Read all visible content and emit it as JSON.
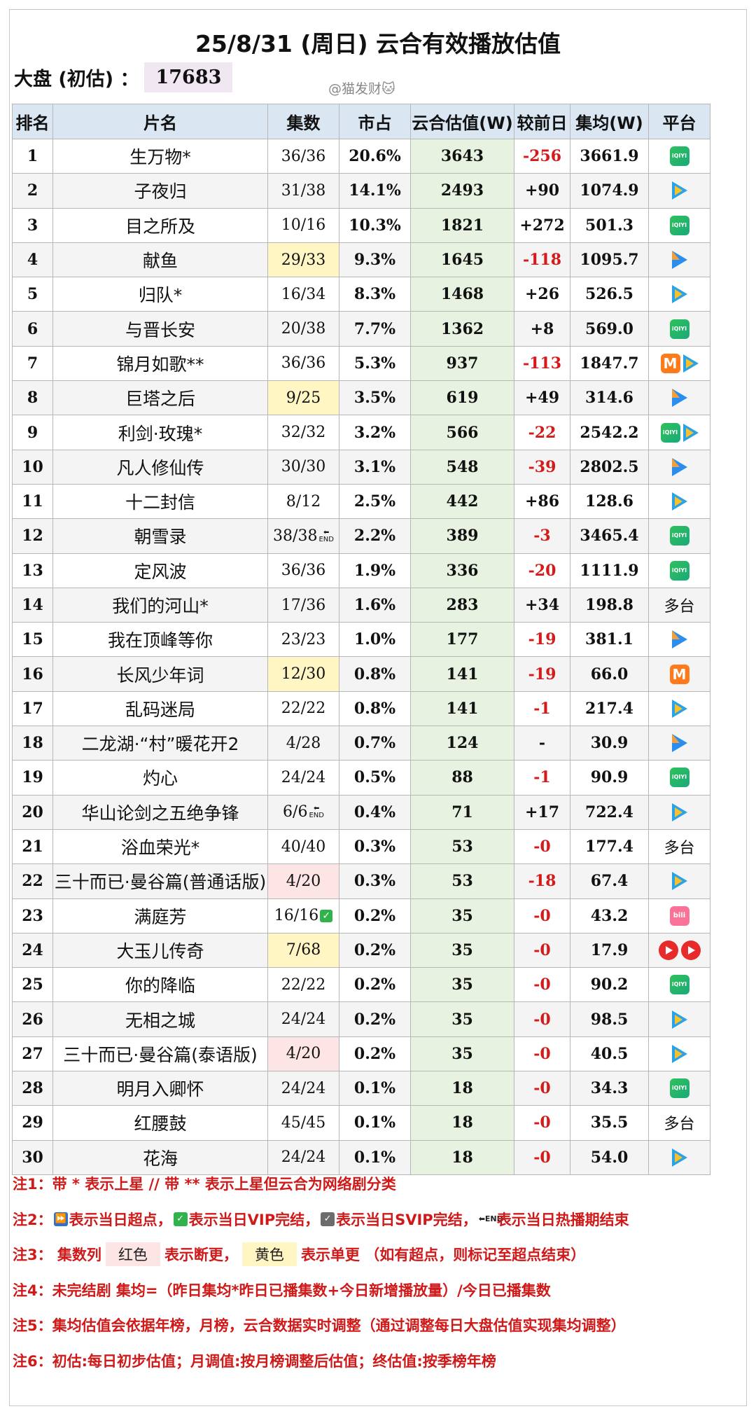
{
  "title": "25/8/31 (周日) 云合有效播放估值",
  "dapan": {
    "label": "大盘 (初估) ：",
    "value": "17683"
  },
  "watermark": "@猫发财🐱",
  "headers": [
    "排名",
    "片名",
    "集数",
    "市占",
    "云合估值(W)",
    "较前日",
    "集均(W)",
    "平台"
  ],
  "rows": [
    {
      "rank": "1",
      "name": "生万物*",
      "ep": "36/36",
      "share": "20.6%",
      "est": "3643",
      "chg": "-256",
      "avg": "3661.9",
      "plat": [
        "iqiyi"
      ]
    },
    {
      "rank": "2",
      "name": "子夜归",
      "ep": "31/38",
      "share": "14.1%",
      "est": "2493",
      "chg": "+90",
      "avg": "1074.9",
      "plat": [
        "tencent"
      ]
    },
    {
      "rank": "3",
      "name": "目之所及",
      "ep": "10/16",
      "share": "10.3%",
      "est": "1821",
      "chg": "+272",
      "avg": "501.3",
      "plat": [
        "iqiyi"
      ]
    },
    {
      "rank": "4",
      "name": "献鱼",
      "ep": "29/33",
      "share": "9.3%",
      "est": "1645",
      "chg": "-118",
      "avg": "1095.7",
      "plat": [
        "youku"
      ],
      "ephl": "yellow"
    },
    {
      "rank": "5",
      "name": "归队*",
      "ep": "16/34",
      "share": "8.3%",
      "est": "1468",
      "chg": "+26",
      "avg": "526.5",
      "plat": [
        "tencent"
      ]
    },
    {
      "rank": "6",
      "name": "与晋长安",
      "ep": "20/38",
      "share": "7.7%",
      "est": "1362",
      "chg": "+8",
      "avg": "569.0",
      "plat": [
        "iqiyi"
      ]
    },
    {
      "rank": "7",
      "name": "锦月如歌**",
      "ep": "36/36",
      "share": "5.3%",
      "est": "937",
      "chg": "-113",
      "avg": "1847.7",
      "plat": [
        "mango",
        "tencent"
      ]
    },
    {
      "rank": "8",
      "name": "巨塔之后",
      "ep": "9/25",
      "share": "3.5%",
      "est": "619",
      "chg": "+49",
      "avg": "314.6",
      "plat": [
        "youku"
      ],
      "ephl": "yellow"
    },
    {
      "rank": "9",
      "name": "利剑·玫瑰*",
      "ep": "32/32",
      "share": "3.2%",
      "est": "566",
      "chg": "-22",
      "avg": "2542.2",
      "plat": [
        "iqiyi",
        "tencent"
      ]
    },
    {
      "rank": "10",
      "name": "凡人修仙传",
      "ep": "30/30",
      "share": "3.1%",
      "est": "548",
      "chg": "-39",
      "avg": "2802.5",
      "plat": [
        "youku"
      ]
    },
    {
      "rank": "11",
      "name": "十二封信",
      "ep": "8/12",
      "share": "2.5%",
      "est": "442",
      "chg": "+86",
      "avg": "128.6",
      "plat": [
        "tencent"
      ]
    },
    {
      "rank": "12",
      "name": "朝雪录",
      "ep": "38/38",
      "share": "2.2%",
      "est": "389",
      "chg": "-3",
      "avg": "3465.4",
      "plat": [
        "iqiyi"
      ],
      "flag": "END"
    },
    {
      "rank": "13",
      "name": "定风波",
      "ep": "36/36",
      "share": "1.9%",
      "est": "336",
      "chg": "-20",
      "avg": "1111.9",
      "plat": [
        "iqiyi"
      ]
    },
    {
      "rank": "14",
      "name": "我们的河山*",
      "ep": "17/36",
      "share": "1.6%",
      "est": "283",
      "chg": "+34",
      "avg": "198.8",
      "platText": "多台"
    },
    {
      "rank": "15",
      "name": "我在顶峰等你",
      "ep": "23/23",
      "share": "1.0%",
      "est": "177",
      "chg": "-19",
      "avg": "381.1",
      "plat": [
        "youku"
      ]
    },
    {
      "rank": "16",
      "name": "长风少年词",
      "ep": "12/30",
      "share": "0.8%",
      "est": "141",
      "chg": "-19",
      "avg": "66.0",
      "plat": [
        "mango"
      ],
      "ephl": "yellow"
    },
    {
      "rank": "17",
      "name": "乱码迷局",
      "ep": "22/22",
      "share": "0.8%",
      "est": "141",
      "chg": "-1",
      "avg": "217.4",
      "plat": [
        "tencent"
      ]
    },
    {
      "rank": "18",
      "name": "二龙湖·“村”暖花开2",
      "ep": "4/28",
      "share": "0.7%",
      "est": "124",
      "chg": "-",
      "avg": "30.9",
      "plat": [
        "youku"
      ]
    },
    {
      "rank": "19",
      "name": "灼心",
      "ep": "24/24",
      "share": "0.5%",
      "est": "88",
      "chg": "-1",
      "avg": "90.9",
      "plat": [
        "iqiyi"
      ]
    },
    {
      "rank": "20",
      "name": "华山论剑之五绝争锋",
      "ep": "6/6",
      "share": "0.4%",
      "est": "71",
      "chg": "+17",
      "avg": "722.4",
      "plat": [
        "tencent"
      ],
      "flag": "END"
    },
    {
      "rank": "21",
      "name": "浴血荣光*",
      "ep": "40/40",
      "share": "0.3%",
      "est": "53",
      "chg": "-0",
      "avg": "177.4",
      "platText": "多台"
    },
    {
      "rank": "22",
      "name": "三十而已·曼谷篇(普通话版)",
      "ep": "4/20",
      "share": "0.3%",
      "est": "53",
      "chg": "-18",
      "avg": "67.4",
      "plat": [
        "tencent"
      ],
      "ephl": "red"
    },
    {
      "rank": "23",
      "name": "满庭芳",
      "ep": "16/16",
      "share": "0.2%",
      "est": "35",
      "chg": "-0",
      "avg": "43.2",
      "plat": [
        "bili"
      ],
      "vip": "✓"
    },
    {
      "rank": "24",
      "name": "大玉儿传奇",
      "ep": "7/68",
      "share": "0.2%",
      "est": "35",
      "chg": "-0",
      "avg": "17.9",
      "plat": [
        "mgtv",
        "mgtv"
      ],
      "ephl": "yellow"
    },
    {
      "rank": "25",
      "name": "你的降临",
      "ep": "22/22",
      "share": "0.2%",
      "est": "35",
      "chg": "-0",
      "avg": "90.2",
      "plat": [
        "iqiyi"
      ]
    },
    {
      "rank": "26",
      "name": "无相之城",
      "ep": "24/24",
      "share": "0.2%",
      "est": "35",
      "chg": "-0",
      "avg": "98.5",
      "plat": [
        "tencent"
      ]
    },
    {
      "rank": "27",
      "name": "三十而已·曼谷篇(泰语版)",
      "ep": "4/20",
      "share": "0.2%",
      "est": "35",
      "chg": "-0",
      "avg": "40.5",
      "plat": [
        "tencent"
      ],
      "ephl": "red"
    },
    {
      "rank": "28",
      "name": "明月入卿怀",
      "ep": "24/24",
      "share": "0.1%",
      "est": "18",
      "chg": "-0",
      "avg": "34.3",
      "plat": [
        "iqiyi"
      ]
    },
    {
      "rank": "29",
      "name": "红腰鼓",
      "ep": "45/45",
      "share": "0.1%",
      "est": "18",
      "chg": "-0",
      "avg": "35.5",
      "platText": "多台"
    },
    {
      "rank": "30",
      "name": "花海",
      "ep": "24/24",
      "share": "0.1%",
      "est": "18",
      "chg": "-0",
      "avg": "54.0",
      "plat": [
        "tencent"
      ]
    }
  ],
  "notes": {
    "n1": "注1：带 * 表示上星 // 带 ** 表示上星但云合为网络剧分类",
    "n2": {
      "prefix": "注2：",
      "a": "表示当日超点，",
      "b": "表示当日VIP完结，",
      "c": "表示当日SVIP完结，",
      "d": "表示当日热播期结束",
      "end": "END"
    },
    "n3": {
      "prefix": "注3：  集数列",
      "red": "红色",
      "mid": "表示断更，",
      "yellow": "黄色",
      "tail": "表示单更 （如有超点，则标记至超点结束）"
    },
    "n4": "注4：未完结剧 集均=（昨日集均*昨日已播集数+今日新增播放量）/今日已播集数",
    "n5": "注5：集均估值会依据年榜，月榜，云合数据实时调整（通过调整每日大盘估值实现集均调整）",
    "n6": "注6：初估:每日初步估值；月调值:按月榜调整后估值；终估值:按季榜年榜"
  },
  "colors": {
    "header_bg": "#dae7f3",
    "est_bg": "#e7f2e0",
    "negative": "#d41a1a",
    "note": "#d01919"
  }
}
